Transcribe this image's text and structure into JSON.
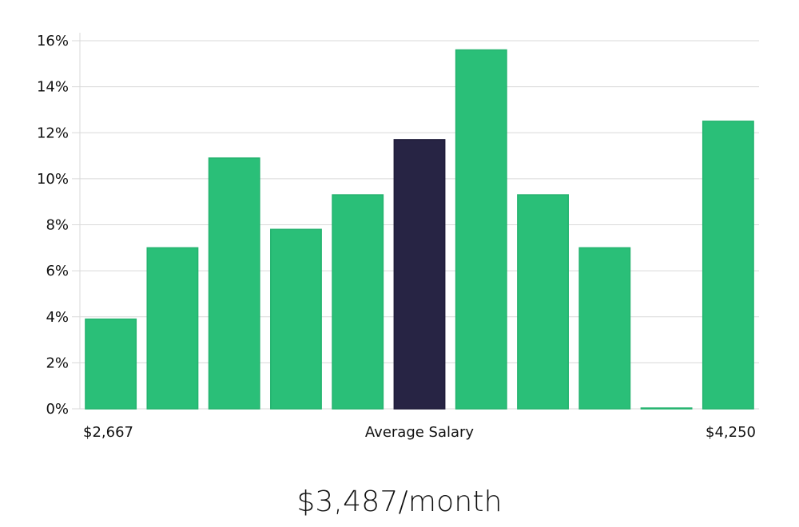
{
  "chart_data": {
    "type": "bar",
    "categories": [
      "",
      "",
      "",
      "",
      "",
      "",
      "",
      "",
      "",
      "",
      ""
    ],
    "values": [
      3.9,
      7.0,
      10.9,
      7.8,
      9.3,
      11.7,
      15.6,
      9.3,
      7.0,
      0.0,
      12.5
    ],
    "highlight_index": 5,
    "ylim": [
      0,
      16
    ],
    "y_ticks": [
      0,
      2,
      4,
      6,
      8,
      10,
      12,
      14,
      16
    ],
    "y_tick_suffix": "%",
    "x_axis": {
      "left_label": "$2,667",
      "center_label": "Average Salary",
      "right_label": "$4,250"
    },
    "grid": true,
    "colors": {
      "bar": "#2abf78",
      "bar_stroke": "#24b36f",
      "highlight": "#272444",
      "highlight_stroke": "#1f1c3a"
    }
  },
  "summary": {
    "salary_text": "$3,487/month"
  }
}
